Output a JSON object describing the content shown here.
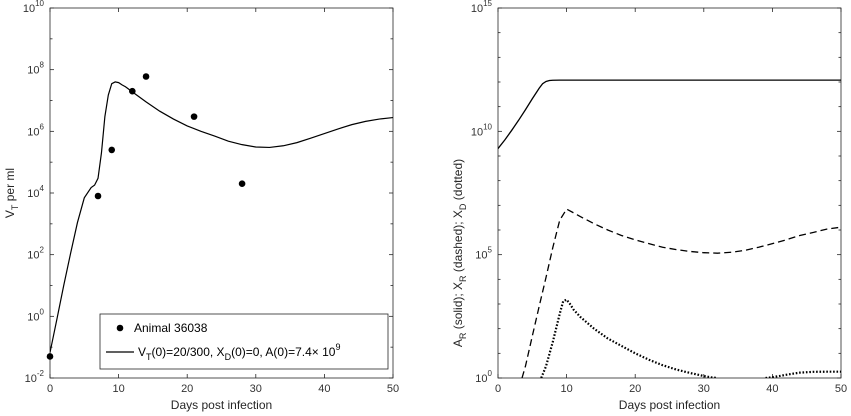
{
  "chart_data": [
    {
      "type": "line",
      "panel": "left",
      "xlabel": "Days post infection",
      "ylabel_main": "V",
      "ylabel_sub": "T",
      "ylabel_rest": " per ml",
      "xlim": [
        0,
        50
      ],
      "ylim": [
        0.01,
        10000000000
      ],
      "yscale": "log",
      "grid": false,
      "legend_position": "bottom-right",
      "x_ticks": [
        0,
        10,
        20,
        30,
        40,
        50
      ],
      "x_tick_labels": [
        "0",
        "10",
        "20",
        "30",
        "40",
        "50"
      ],
      "y_tick_exponents": [
        -2,
        0,
        2,
        4,
        6,
        8,
        10
      ],
      "y_tick_labels": [
        "10",
        "10",
        "10",
        "10",
        "10",
        "10",
        "10"
      ],
      "y_tick_superscripts": [
        "-2",
        "0",
        "2",
        "4",
        "6",
        "8",
        "10"
      ],
      "series": [
        {
          "name": "Animal 36038",
          "style": "markers",
          "x": [
            0,
            7,
            9,
            12,
            14,
            21,
            28
          ],
          "y": [
            0.05,
            8000,
            250000,
            20000000,
            60000000,
            3000000,
            20000
          ]
        },
        {
          "name": "VT(0)=20/300, XD(0)=0, A(0)=7.4× 10^9",
          "style": "solid",
          "x": [
            0,
            1,
            2,
            3,
            4,
            5,
            6,
            6.5,
            7,
            7.5,
            8,
            8.5,
            9,
            9.5,
            10,
            10.5,
            11,
            12,
            14,
            16,
            18,
            20,
            22,
            24,
            26,
            28,
            30,
            32,
            34,
            36,
            38,
            40,
            42,
            44,
            46,
            48,
            50
          ],
          "y": [
            0.067,
            0.8,
            10,
            110,
            1100,
            7000,
            15000,
            18000,
            30000,
            200000,
            3000000,
            15000000,
            35000000,
            40000000,
            38000000,
            32000000,
            28000000,
            19000000,
            9000000,
            4500000,
            2500000,
            1500000,
            1000000,
            700000,
            480000,
            370000,
            310000,
            300000,
            340000,
            430000,
            600000,
            850000,
            1200000,
            1650000,
            2100000,
            2500000,
            2800000
          ]
        }
      ],
      "legend": {
        "entry1": "Animal 36038",
        "entry2_prefix": "V",
        "entry2_sub1": "T",
        "entry2_mid": "(0)=20/300, X",
        "entry2_sub2": "D",
        "entry2_tail": "(0)=0, A(0)=7.4× 10",
        "entry2_sup": "9"
      }
    },
    {
      "type": "line",
      "panel": "right",
      "xlabel": "Days post infection",
      "ylabel_parts": [
        "A",
        "R",
        " (solid); X",
        "R",
        " (dashed); X",
        "D",
        " (dotted)"
      ],
      "xlim": [
        0,
        50
      ],
      "ylim": [
        1,
        1000000000000000
      ],
      "yscale": "log",
      "grid": false,
      "x_ticks": [
        0,
        10,
        20,
        30,
        40,
        50
      ],
      "x_tick_labels": [
        "0",
        "10",
        "20",
        "30",
        "40",
        "50"
      ],
      "y_tick_exponents": [
        0,
        5,
        10,
        15
      ],
      "y_tick_labels": [
        "10",
        "10",
        "10",
        "10"
      ],
      "y_tick_superscripts": [
        "0",
        "5",
        "10",
        "15"
      ],
      "series": [
        {
          "style": "solid",
          "x": [
            0,
            1,
            2,
            3,
            4,
            5,
            6,
            6.5,
            7,
            7.5,
            8,
            9,
            10,
            20,
            30,
            40,
            50
          ],
          "y": [
            2000000000,
            4500000000,
            11000000000,
            28000000000,
            75000000000,
            210000000000,
            560000000000,
            850000000000,
            1050000000000,
            1150000000000,
            1180000000000,
            1190000000000,
            1190000000000,
            1190000000000,
            1190000000000,
            1190000000000,
            1190000000000
          ]
        },
        {
          "style": "dashed",
          "x": [
            3.5,
            4,
            5,
            6,
            7,
            8,
            9,
            10,
            11,
            12,
            14,
            16,
            18,
            20,
            22,
            24,
            26,
            28,
            30,
            32,
            34,
            36,
            38,
            40,
            42,
            44,
            46,
            48,
            50
          ],
          "y": [
            1,
            3,
            50,
            800,
            12000,
            200000,
            2500000,
            7000000,
            5000000,
            3500000,
            1800000,
            1000000,
            600000,
            400000,
            280000,
            200000,
            160000,
            135000,
            120000,
            115000,
            125000,
            150000,
            200000,
            280000,
            400000,
            600000,
            800000,
            1100000,
            1300000
          ]
        },
        {
          "style": "dotted",
          "x": [
            6.3,
            7,
            8,
            9,
            9.5,
            10,
            10.5,
            11,
            12,
            14,
            16,
            18,
            20,
            22,
            24,
            26,
            28,
            30,
            31,
            32
          ],
          "y": [
            1,
            3,
            30,
            400,
            1300,
            1500,
            1000,
            600,
            300,
            100,
            40,
            20,
            10,
            5.5,
            3.3,
            2.2,
            1.6,
            1.2,
            1.07,
            1
          ],
          "x2": [
            39,
            40,
            41,
            42,
            43,
            44,
            46,
            48,
            50
          ],
          "y2": [
            1,
            1.08,
            1.2,
            1.35,
            1.5,
            1.65,
            1.78,
            1.8,
            1.8
          ]
        }
      ]
    }
  ]
}
